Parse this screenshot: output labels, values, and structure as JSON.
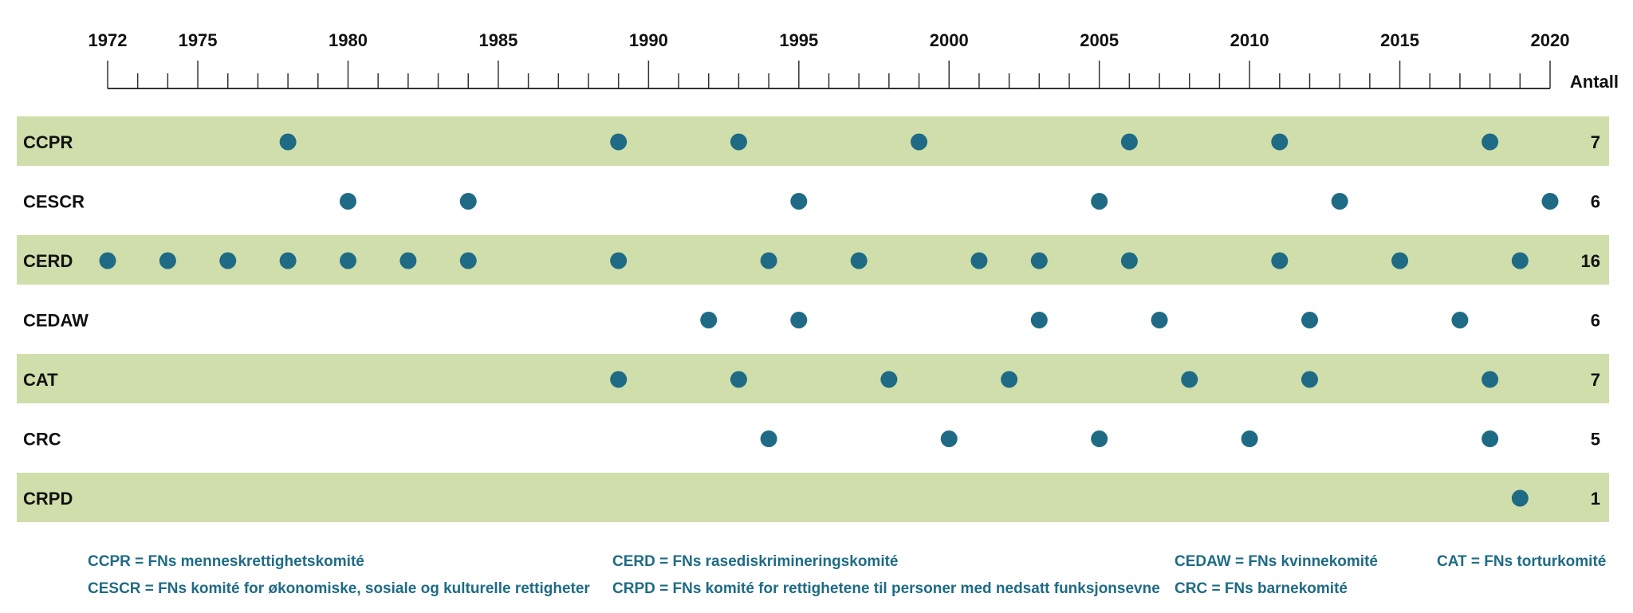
{
  "chart_data": {
    "type": "scatter",
    "x_range": [
      1972,
      2020
    ],
    "x_ticks": [
      "1972",
      "1975",
      "1980",
      "1985",
      "1990",
      "1995",
      "2000",
      "2005",
      "2010",
      "2015",
      "2020"
    ],
    "count_header": "Antall",
    "series": [
      {
        "name": "CCPR",
        "count": "7",
        "x": [
          1978,
          1989,
          1993,
          1999,
          2006,
          2011,
          2018
        ]
      },
      {
        "name": "CESCR",
        "count": "6",
        "x": [
          1980,
          1984,
          1995,
          2005,
          2013,
          2020
        ]
      },
      {
        "name": "CERD",
        "count": "16",
        "x": [
          1972,
          1974,
          1976,
          1978,
          1980,
          1982,
          1984,
          1989,
          1994,
          1997,
          2001,
          2003,
          2006,
          2011,
          2015,
          2019
        ]
      },
      {
        "name": "CEDAW",
        "count": "6",
        "x": [
          1992,
          1995,
          2003,
          2007,
          2012,
          2017
        ]
      },
      {
        "name": "CAT",
        "count": "7",
        "x": [
          1989,
          1993,
          1998,
          2002,
          2008,
          2012,
          2018
        ]
      },
      {
        "name": "CRC",
        "count": "5",
        "x": [
          1994,
          2000,
          2005,
          2010,
          2018
        ]
      },
      {
        "name": "CRPD",
        "count": "1",
        "x": [
          2019
        ]
      }
    ],
    "colors": {
      "marker": "#1f6b85",
      "band": "#cfdeaa",
      "legend_text": "#1f6b85"
    }
  },
  "legend": [
    {
      "abbr": "CCPR",
      "text": "CCPR =  FNs menneskrettighetskomité"
    },
    {
      "abbr": "CESCR",
      "text": "CESCR =  FNs komité for økonomiske, sosiale og kulturelle rettigheter"
    },
    {
      "abbr": "CERD",
      "text": "CERD =  FNs rasediskrimineringskomité"
    },
    {
      "abbr": "CRPD",
      "text": "CRPD =  FNs komité for rettighetene til personer med nedsatt funksjonsevne"
    },
    {
      "abbr": "CEDAW",
      "text": "CEDAW =  FNs kvinnekomité"
    },
    {
      "abbr": "CRC",
      "text": "CRC =  FNs barnekomité"
    },
    {
      "abbr": "CAT",
      "text": "CAT =  FNs torturkomité"
    }
  ]
}
